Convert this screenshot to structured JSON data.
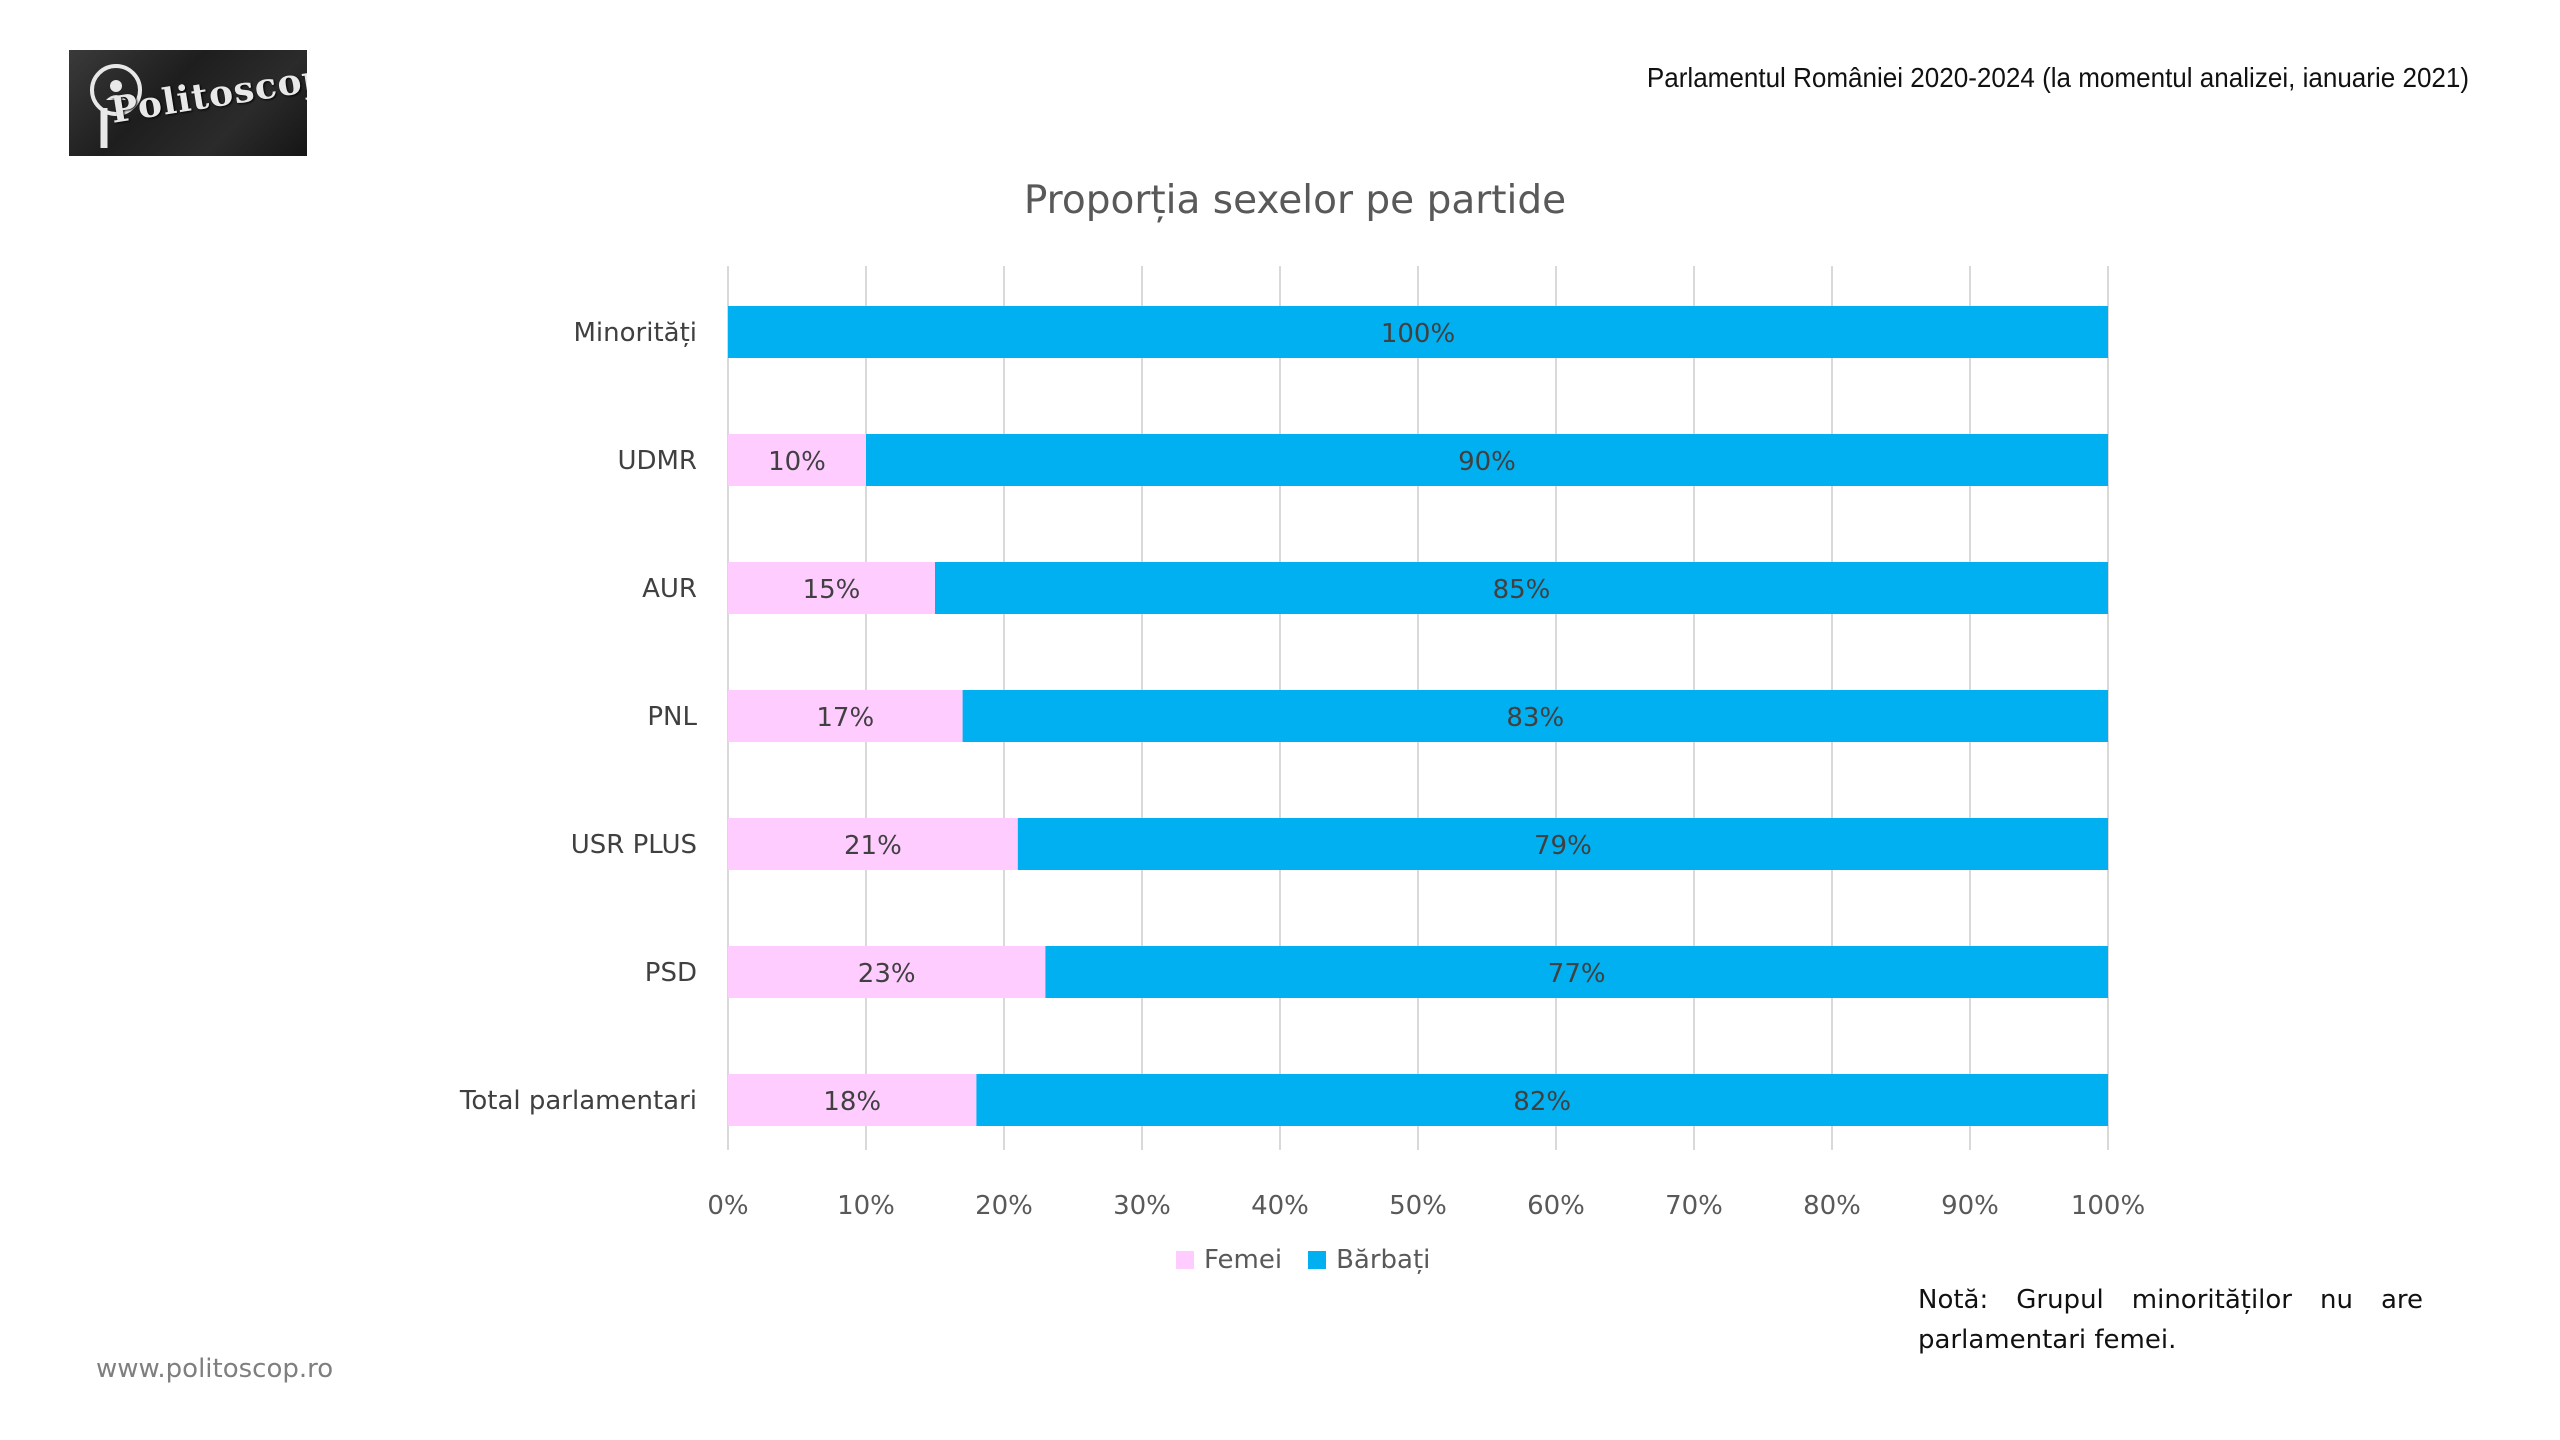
{
  "header": {
    "logo_text": "Politoscop",
    "note": "Parlamentul României 2020-2024 (la momentul analizei, ianuarie 2021)"
  },
  "colors": {
    "femei": "#FFCCFF",
    "barbati": "#00B0F0",
    "grid": "#d9d9d9"
  },
  "chart_data": {
    "type": "bar",
    "orientation": "horizontal",
    "stacked": "percent",
    "title": "Proporția sexelor pe partide",
    "categories": [
      "Minorități",
      "UDMR",
      "AUR",
      "PNL",
      "USR PLUS",
      "PSD",
      "Total parlamentari"
    ],
    "series": [
      {
        "name": "Femei",
        "values": [
          0,
          10,
          15,
          17,
          21,
          23,
          18
        ],
        "labels": [
          "",
          "10%",
          "15%",
          "17%",
          "21%",
          "23%",
          "18%"
        ]
      },
      {
        "name": "Bărbați",
        "values": [
          100,
          90,
          85,
          83,
          79,
          77,
          82
        ],
        "labels": [
          "100%",
          "90%",
          "85%",
          "83%",
          "79%",
          "77%",
          "82%"
        ]
      }
    ],
    "xlim": [
      0,
      100
    ],
    "x_ticks": [
      "0%",
      "10%",
      "20%",
      "30%",
      "40%",
      "50%",
      "60%",
      "70%",
      "80%",
      "90%",
      "100%"
    ],
    "grid": true,
    "legend_position": "bottom"
  },
  "note": {
    "text": "Notă: Grupul minorităților nu are parlamentari femei."
  },
  "footer": {
    "url": "www.politoscop.ro"
  }
}
